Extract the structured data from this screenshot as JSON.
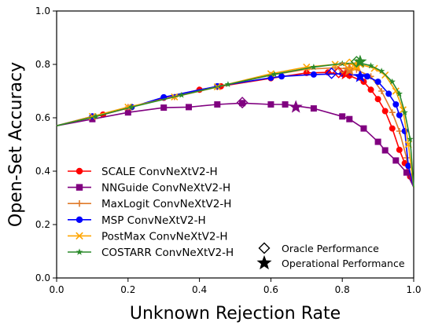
{
  "chart_data": {
    "type": "line",
    "xlabel": "Unknown Rejection Rate",
    "ylabel": "Open-Set Accuracy",
    "xlim": [
      0.0,
      1.0
    ],
    "ylim": [
      0.0,
      1.0
    ],
    "xticks": [
      "0.0",
      "0.2",
      "0.4",
      "0.6",
      "0.8",
      "1.0"
    ],
    "yticks": [
      "0.0",
      "0.2",
      "0.4",
      "0.6",
      "0.8",
      "1.0"
    ],
    "grid": false,
    "legend_placement": "lower-left",
    "series": [
      {
        "name": "SCALE ConvNeXtV2-H",
        "color": "#ff0000",
        "marker": "circle",
        "points": [
          [
            0.0,
            0.57
          ],
          [
            0.13,
            0.612
          ],
          [
            0.21,
            0.64
          ],
          [
            0.3,
            0.675
          ],
          [
            0.4,
            0.705
          ],
          [
            0.46,
            0.718
          ],
          [
            0.6,
            0.748
          ],
          [
            0.7,
            0.768
          ],
          [
            0.76,
            0.77
          ],
          [
            0.82,
            0.758
          ],
          [
            0.86,
            0.735
          ],
          [
            0.88,
            0.705
          ],
          [
            0.9,
            0.67
          ],
          [
            0.92,
            0.625
          ],
          [
            0.94,
            0.56
          ],
          [
            0.96,
            0.48
          ],
          [
            0.975,
            0.43
          ],
          [
            0.99,
            0.38
          ],
          [
            1.0,
            0.34
          ]
        ],
        "oracle": [
          0.79,
          0.77
        ],
        "operational": [
          0.81,
          0.765
        ]
      },
      {
        "name": "NNGuide ConvNeXtV2-H",
        "color": "#800080",
        "marker": "square",
        "points": [
          [
            0.0,
            0.57
          ],
          [
            0.1,
            0.595
          ],
          [
            0.2,
            0.62
          ],
          [
            0.3,
            0.638
          ],
          [
            0.37,
            0.64
          ],
          [
            0.45,
            0.65
          ],
          [
            0.52,
            0.655
          ],
          [
            0.6,
            0.65
          ],
          [
            0.64,
            0.65
          ],
          [
            0.72,
            0.635
          ],
          [
            0.8,
            0.605
          ],
          [
            0.82,
            0.595
          ],
          [
            0.86,
            0.56
          ],
          [
            0.9,
            0.51
          ],
          [
            0.92,
            0.478
          ],
          [
            0.95,
            0.44
          ],
          [
            0.98,
            0.395
          ],
          [
            1.0,
            0.34
          ]
        ],
        "oracle": [
          0.52,
          0.657
        ],
        "operational": [
          0.67,
          0.64
        ]
      },
      {
        "name": "MaxLogit ConvNeXtV2-H",
        "color": "#e07a2a",
        "marker": "plus",
        "points": [
          [
            0.0,
            0.57
          ],
          [
            0.1,
            0.605
          ],
          [
            0.2,
            0.64
          ],
          [
            0.33,
            0.678
          ],
          [
            0.45,
            0.715
          ],
          [
            0.6,
            0.76
          ],
          [
            0.7,
            0.782
          ],
          [
            0.78,
            0.787
          ],
          [
            0.84,
            0.78
          ],
          [
            0.88,
            0.755
          ],
          [
            0.91,
            0.7
          ],
          [
            0.94,
            0.62
          ],
          [
            0.96,
            0.55
          ],
          [
            0.98,
            0.45
          ],
          [
            1.0,
            0.34
          ]
        ],
        "oracle": [
          0.8,
          0.787
        ],
        "operational": [
          0.82,
          0.78
        ]
      },
      {
        "name": "MSP ConvNeXtV2-H",
        "color": "#0000ff",
        "marker": "circle",
        "points": [
          [
            0.0,
            0.57
          ],
          [
            0.1,
            0.605
          ],
          [
            0.21,
            0.64
          ],
          [
            0.3,
            0.677
          ],
          [
            0.45,
            0.718
          ],
          [
            0.6,
            0.75
          ],
          [
            0.63,
            0.755
          ],
          [
            0.72,
            0.762
          ],
          [
            0.8,
            0.765
          ],
          [
            0.87,
            0.755
          ],
          [
            0.9,
            0.735
          ],
          [
            0.93,
            0.69
          ],
          [
            0.95,
            0.65
          ],
          [
            0.96,
            0.61
          ],
          [
            0.975,
            0.55
          ],
          [
            0.985,
            0.42
          ],
          [
            1.0,
            0.34
          ]
        ],
        "oracle": [
          0.77,
          0.767
        ],
        "operational": [
          0.85,
          0.755
        ]
      },
      {
        "name": "PostMax ConvNeXtV2-H",
        "color": "#ffa500",
        "marker": "x",
        "points": [
          [
            0.0,
            0.57
          ],
          [
            0.1,
            0.605
          ],
          [
            0.2,
            0.64
          ],
          [
            0.33,
            0.678
          ],
          [
            0.45,
            0.716
          ],
          [
            0.6,
            0.765
          ],
          [
            0.7,
            0.79
          ],
          [
            0.78,
            0.8
          ],
          [
            0.85,
            0.8
          ],
          [
            0.89,
            0.785
          ],
          [
            0.92,
            0.76
          ],
          [
            0.95,
            0.7
          ],
          [
            0.97,
            0.63
          ],
          [
            0.985,
            0.5
          ],
          [
            1.0,
            0.34
          ]
        ],
        "oracle": [
          0.82,
          0.8
        ],
        "operational": [
          0.84,
          0.795
        ]
      },
      {
        "name": "COSTARR ConvNeXtV2-H",
        "color": "#2a8a2a",
        "marker": "star",
        "points": [
          [
            0.0,
            0.57
          ],
          [
            0.11,
            0.605
          ],
          [
            0.21,
            0.64
          ],
          [
            0.35,
            0.685
          ],
          [
            0.48,
            0.725
          ],
          [
            0.61,
            0.763
          ],
          [
            0.72,
            0.79
          ],
          [
            0.8,
            0.803
          ],
          [
            0.85,
            0.805
          ],
          [
            0.88,
            0.795
          ],
          [
            0.91,
            0.775
          ],
          [
            0.94,
            0.735
          ],
          [
            0.96,
            0.69
          ],
          [
            0.975,
            0.62
          ],
          [
            0.99,
            0.52
          ],
          [
            1.0,
            0.34
          ]
        ],
        "oracle": [
          0.84,
          0.81
        ],
        "operational": [
          0.85,
          0.81
        ]
      }
    ],
    "marker_legend": [
      {
        "label": "Oracle Performance",
        "symbol": "diamond-open"
      },
      {
        "label": "Operational Performance",
        "symbol": "star-filled"
      }
    ]
  }
}
